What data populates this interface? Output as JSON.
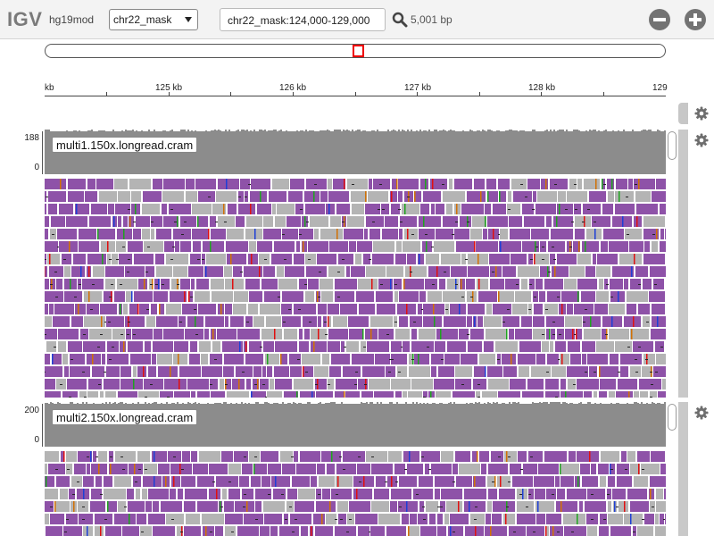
{
  "app": {
    "logo": "IGV",
    "genome": "hg19mod"
  },
  "navbar": {
    "chromosome": "chr22_mask",
    "locus": "chr22_mask:124,000-129,000",
    "window_size": "5,001 bp",
    "icons": {
      "search": "search-icon",
      "zoom_out": "zoom-out-icon",
      "zoom_in": "zoom-in-icon"
    }
  },
  "ruler": {
    "labels": [
      "kb",
      "125 kb",
      "126 kb",
      "127 kb",
      "128 kb",
      "129"
    ]
  },
  "tracks": [
    {
      "name": "multi1.150x.longread.cram",
      "coverage_max": "188",
      "coverage_min": "0"
    },
    {
      "name": "multi2.150x.longread.cram",
      "coverage_max": "200",
      "coverage_min": "0"
    }
  ],
  "colors": {
    "coverage": "#8c8c8c",
    "read_forward": "#8e52a8",
    "read_reverse": "#b4b4b4",
    "mismatch_a": "#1fa31f",
    "mismatch_c": "#1e3fd6",
    "mismatch_g": "#d17105",
    "mismatch_t": "#e01010",
    "locus_box": "#e00000"
  }
}
